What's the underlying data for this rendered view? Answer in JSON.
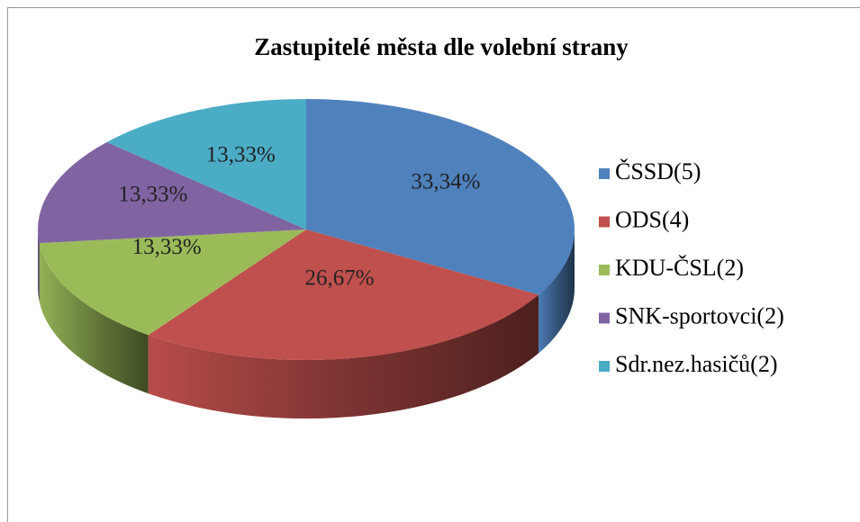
{
  "chart_data": {
    "type": "pie",
    "title": "Zastupitelé města dle volební strany",
    "categories": [
      "ČSSD(5)",
      "ODS(4)",
      "KDU-ČSL(2)",
      "SNK-sportovci(2)",
      "Sdr.nez.hasičů(2)"
    ],
    "values": [
      33.34,
      26.67,
      13.33,
      13.33,
      13.33
    ],
    "value_labels": [
      "33,34%",
      "26,67%",
      "13,33%",
      "13,33%",
      "13,33%"
    ],
    "colors": [
      "#4f81bd",
      "#c0504d",
      "#9bbb59",
      "#8064a2",
      "#4bacc6"
    ],
    "legend": "right"
  }
}
